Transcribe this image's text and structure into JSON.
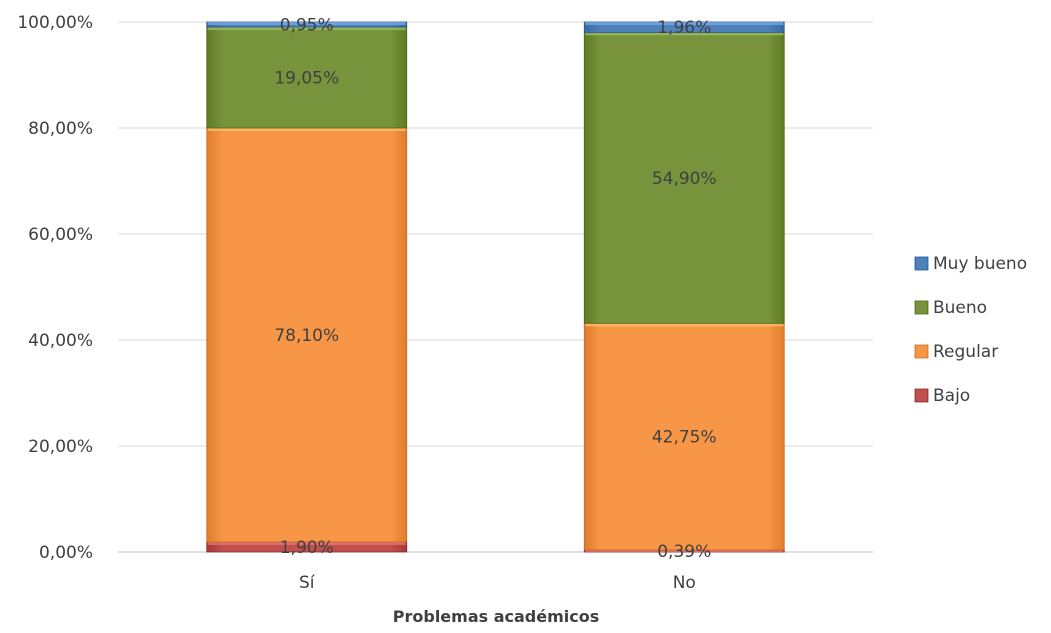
{
  "chart_data": {
    "type": "bar",
    "stacked": true,
    "categories": [
      "Sí",
      "No"
    ],
    "series": [
      {
        "name": "Bajo",
        "values": [
          1.9,
          0.39
        ],
        "labels": [
          "1,90%",
          "0,39%"
        ],
        "color": "#c0504d"
      },
      {
        "name": "Regular",
        "values": [
          78.1,
          42.75
        ],
        "labels": [
          "78,10%",
          "42,75%"
        ],
        "color": "#f79646"
      },
      {
        "name": "Bueno",
        "values": [
          19.05,
          54.9
        ],
        "labels": [
          "19,05%",
          "54,90%"
        ],
        "color": "#77933c"
      },
      {
        "name": "Muy bueno",
        "values": [
          0.95,
          1.96
        ],
        "labels": [
          "0,95%",
          "1,96%"
        ],
        "color": "#4f81bd"
      }
    ],
    "title": "",
    "xlabel": "Problemas académicos",
    "ylabel": "",
    "ylim": [
      0,
      100
    ],
    "yticks": [
      0,
      20,
      40,
      60,
      80,
      100
    ],
    "ytick_labels": [
      "0,00%",
      "20,00%",
      "40,00%",
      "60,00%",
      "80,00%",
      "100,00%"
    ],
    "grid": true,
    "legend_position": "right"
  }
}
